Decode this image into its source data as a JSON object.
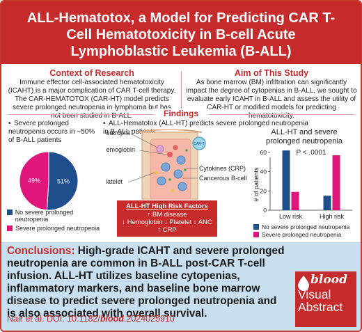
{
  "title": "ALL-Hematotox, a Model for Predicting CAR T-Cell Hematotoxicity in B-cell Acute Lymphoblastic Leukemia (B-ALL)",
  "context": {
    "heading": "Context of Research",
    "text": "Immune effector cell-associated hematotoxicity (ICAHT) is a major complication of CAR T-cell therapy. The CAR-HEMATOTOX (CAR-HT) model predicts severe prolonged neutropenia in lymphoma but has not been studied in B-ALL."
  },
  "aim": {
    "heading": "Aim of This Study",
    "text": "As bone marrow (BM) infiltration can significantly impact the degree of cytopenias in B-ALL, we sought to evaluate early ICAHT in B-ALL and assess the utility of CAR-HT or modified models for predicting hematotoxicity."
  },
  "findings": {
    "heading": "Findings",
    "bullet1": "Severe prolonged neutropenia occurs in ~50% of B-ALL patients",
    "bullet2": "ALL-Hematotox (ALL-HT) predicts severe prolonged neutropenia in B-ALL patients"
  },
  "pie": {
    "slices": [
      {
        "label": "No severe prolonged neutropenia",
        "value": 51,
        "text": "51%",
        "color": "#1f4e8c"
      },
      {
        "label": "Severe prolonged neutropenia",
        "value": 49,
        "text": "49%",
        "color": "#e0177a"
      }
    ]
  },
  "illustration": {
    "neutrophil": "Neutrophil",
    "hemoglobin": "Hemoglobin",
    "platelet": "Platelet",
    "cytokines": "Cytokines (CRP)",
    "cancerous": "Cancerous B-cell",
    "car_t": "CAR-T"
  },
  "risk": {
    "heading": "ALL-HT High Risk Factors",
    "line1": "↑ BM disease",
    "line2": "↓ Hemoglobin ↓ Platelet  ↓ ANC",
    "line3": "↑ CRP"
  },
  "chart_data": {
    "type": "bar",
    "title": "ALL-HT and severe prolonged neutropenia",
    "annotation": "P < .0001",
    "ylabel": "# of patients",
    "ylim": [
      0,
      60
    ],
    "yticks": [
      0,
      20,
      40,
      60
    ],
    "categories": [
      "Low risk",
      "High risk"
    ],
    "series": [
      {
        "name": "No severe prolonged neutropenia",
        "values": [
          62,
          15
        ],
        "color": "#1f4e8c"
      },
      {
        "name": "Severe prolonged neutropenia",
        "values": [
          19,
          57
        ],
        "color": "#e0177a"
      }
    ],
    "legend": "bottom"
  },
  "conclusion": {
    "label": "Conclusions:",
    "text": "High-grade ICAHT and severe prolonged neutropenia are common in B-ALL post-CAR T-cell infusion. ALL-HT utilizes baseline cytopenias, inflammatory markers, and baseline bone marrow disease to predict severe prolonged neutropenia and is also associated with overall survival."
  },
  "citation": {
    "prefix": "Nair et al. DOI: 10.1182/",
    "journal": "blood",
    "suffix": ".2024025910"
  },
  "logo": {
    "word": "blood",
    "line1": "Visual",
    "line2": "Abstract",
    "color": "#c62a2a"
  },
  "colors": {
    "accent": "#c62a2a",
    "navy": "#1f4e8c",
    "magenta": "#e0177a",
    "conclusion_bg": "#c8dff0"
  }
}
